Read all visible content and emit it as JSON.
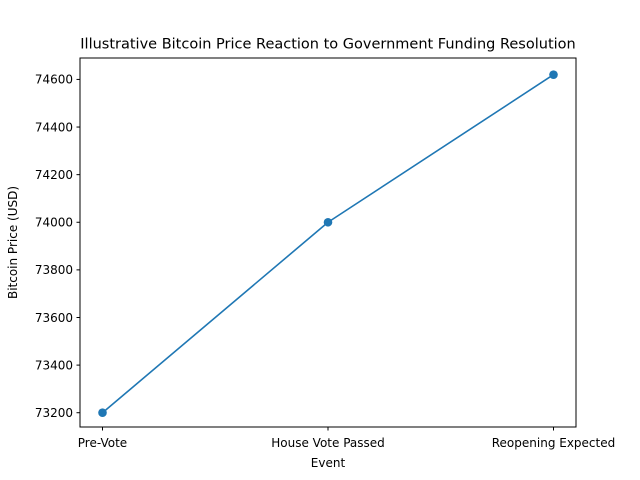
{
  "chart_data": {
    "type": "line",
    "title": "Illustrative Bitcoin Price Reaction to Government Funding Resolution",
    "xlabel": "Event",
    "ylabel": "Bitcoin Price (USD)",
    "categories": [
      "Pre-Vote",
      "House Vote Passed",
      "Reopening Expected"
    ],
    "series": [
      {
        "values": [
          73200,
          74000,
          74620
        ],
        "color": "#1f77b4",
        "marker": "circle"
      }
    ],
    "ylim": [
      73140,
      74690
    ],
    "yticks": [
      73200,
      73400,
      73600,
      73800,
      74000,
      74200,
      74400,
      74600
    ],
    "grid": false,
    "legend": "none"
  }
}
